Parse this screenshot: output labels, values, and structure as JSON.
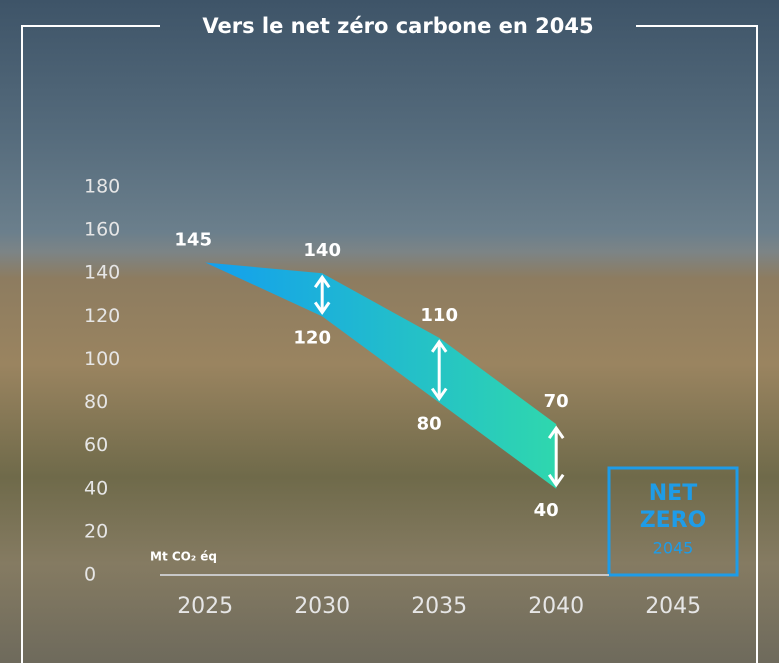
{
  "chart_data": {
    "type": "band",
    "title": "Vers le net zéro carbone en 2045",
    "y_label": "Mt CO₂ éq",
    "x": [
      2025,
      2030,
      2035,
      2040
    ],
    "series": [
      {
        "values": [
          145,
          140,
          110,
          70
        ]
      },
      {
        "values": [
          145,
          120,
          80,
          40
        ]
      }
    ],
    "colors": [
      "#139fee",
      "#2fd7ae"
    ],
    "xlim": [
      2022,
      2047
    ],
    "xticks": [
      2025,
      2030,
      2035,
      2040,
      2045
    ],
    "ylim": [
      0,
      180
    ],
    "yticks": [
      0,
      20,
      40,
      60,
      80,
      100,
      120,
      140,
      160,
      180
    ],
    "badge": {
      "line1": "NET",
      "line2": "ZERO",
      "line3": "2045"
    }
  }
}
